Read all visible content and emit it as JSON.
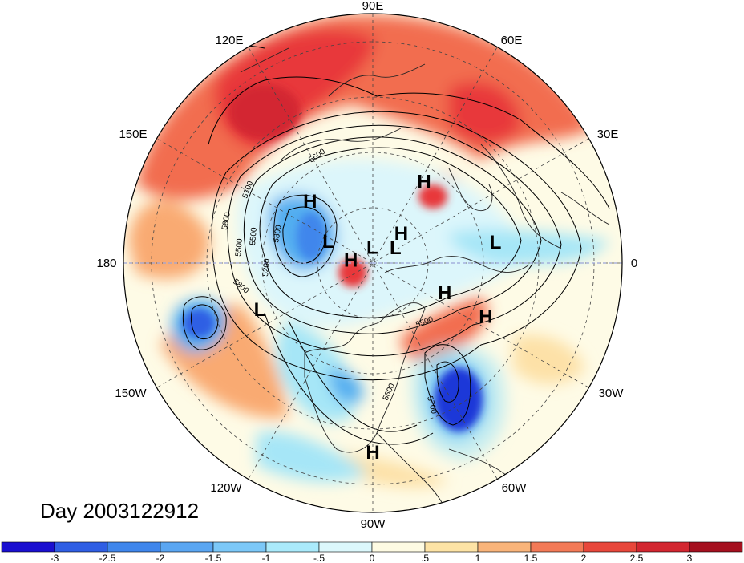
{
  "map": {
    "day_label": "Day 2003122912",
    "longitude_labels": [
      "90E",
      "60E",
      "30E",
      "0",
      "30W",
      "60W",
      "90W",
      "120W",
      "150W",
      "180",
      "150E",
      "120E"
    ],
    "pressure_centers": [
      {
        "text": "H",
        "lon": 135,
        "lat": 58
      },
      {
        "text": "H",
        "lon": 58,
        "lat": 55
      },
      {
        "text": "H",
        "lon": 47,
        "lat": 75
      },
      {
        "text": "L",
        "lon": 92,
        "lat": 84
      },
      {
        "text": "L",
        "lon": 10,
        "lat": 45
      },
      {
        "text": "L",
        "lon": 35,
        "lat": 80
      },
      {
        "text": "L",
        "lon": 153,
        "lat": 72
      },
      {
        "text": "H",
        "lon": 171,
        "lat": 82
      },
      {
        "text": "L",
        "lon": 202,
        "lat": 46
      },
      {
        "text": "H",
        "lon": 338,
        "lat": 62
      },
      {
        "text": "H",
        "lon": 335,
        "lat": 45
      },
      {
        "text": "H",
        "lon": 270,
        "lat": 22
      }
    ],
    "contour_labels": [
      "5600",
      "5700",
      "5800",
      "5500",
      "5300",
      "5500",
      "5200",
      "5800",
      "5500",
      "5700",
      "5600"
    ],
    "colors": {
      "strong_warm": "#e8383a",
      "warm": "#f26d4f",
      "mild_warm": "#f9aa72",
      "weak_warm": "#fde1a7",
      "neutral": "#fefbe6",
      "weak_cold": "#dcf6fb",
      "mild_cold": "#a6e6f7",
      "cold": "#53aef0",
      "strong_cold": "#1d39d8"
    }
  },
  "colorbar": {
    "labels": [
      "-3",
      "-2.5",
      "-2",
      "-1.5",
      "-1",
      "-.5",
      "0",
      ".5",
      "1",
      "1.5",
      "2",
      "2.5",
      "3"
    ],
    "colors": [
      "#1a0fd0",
      "#2f5ee4",
      "#3f86ec",
      "#5aa6f2",
      "#7cc8f8",
      "#aaeafb",
      "#dcf8fc",
      "#fefbe3",
      "#fde3a5",
      "#f9b47a",
      "#f37a57",
      "#e8473b",
      "#d32630",
      "#a5101f"
    ]
  }
}
